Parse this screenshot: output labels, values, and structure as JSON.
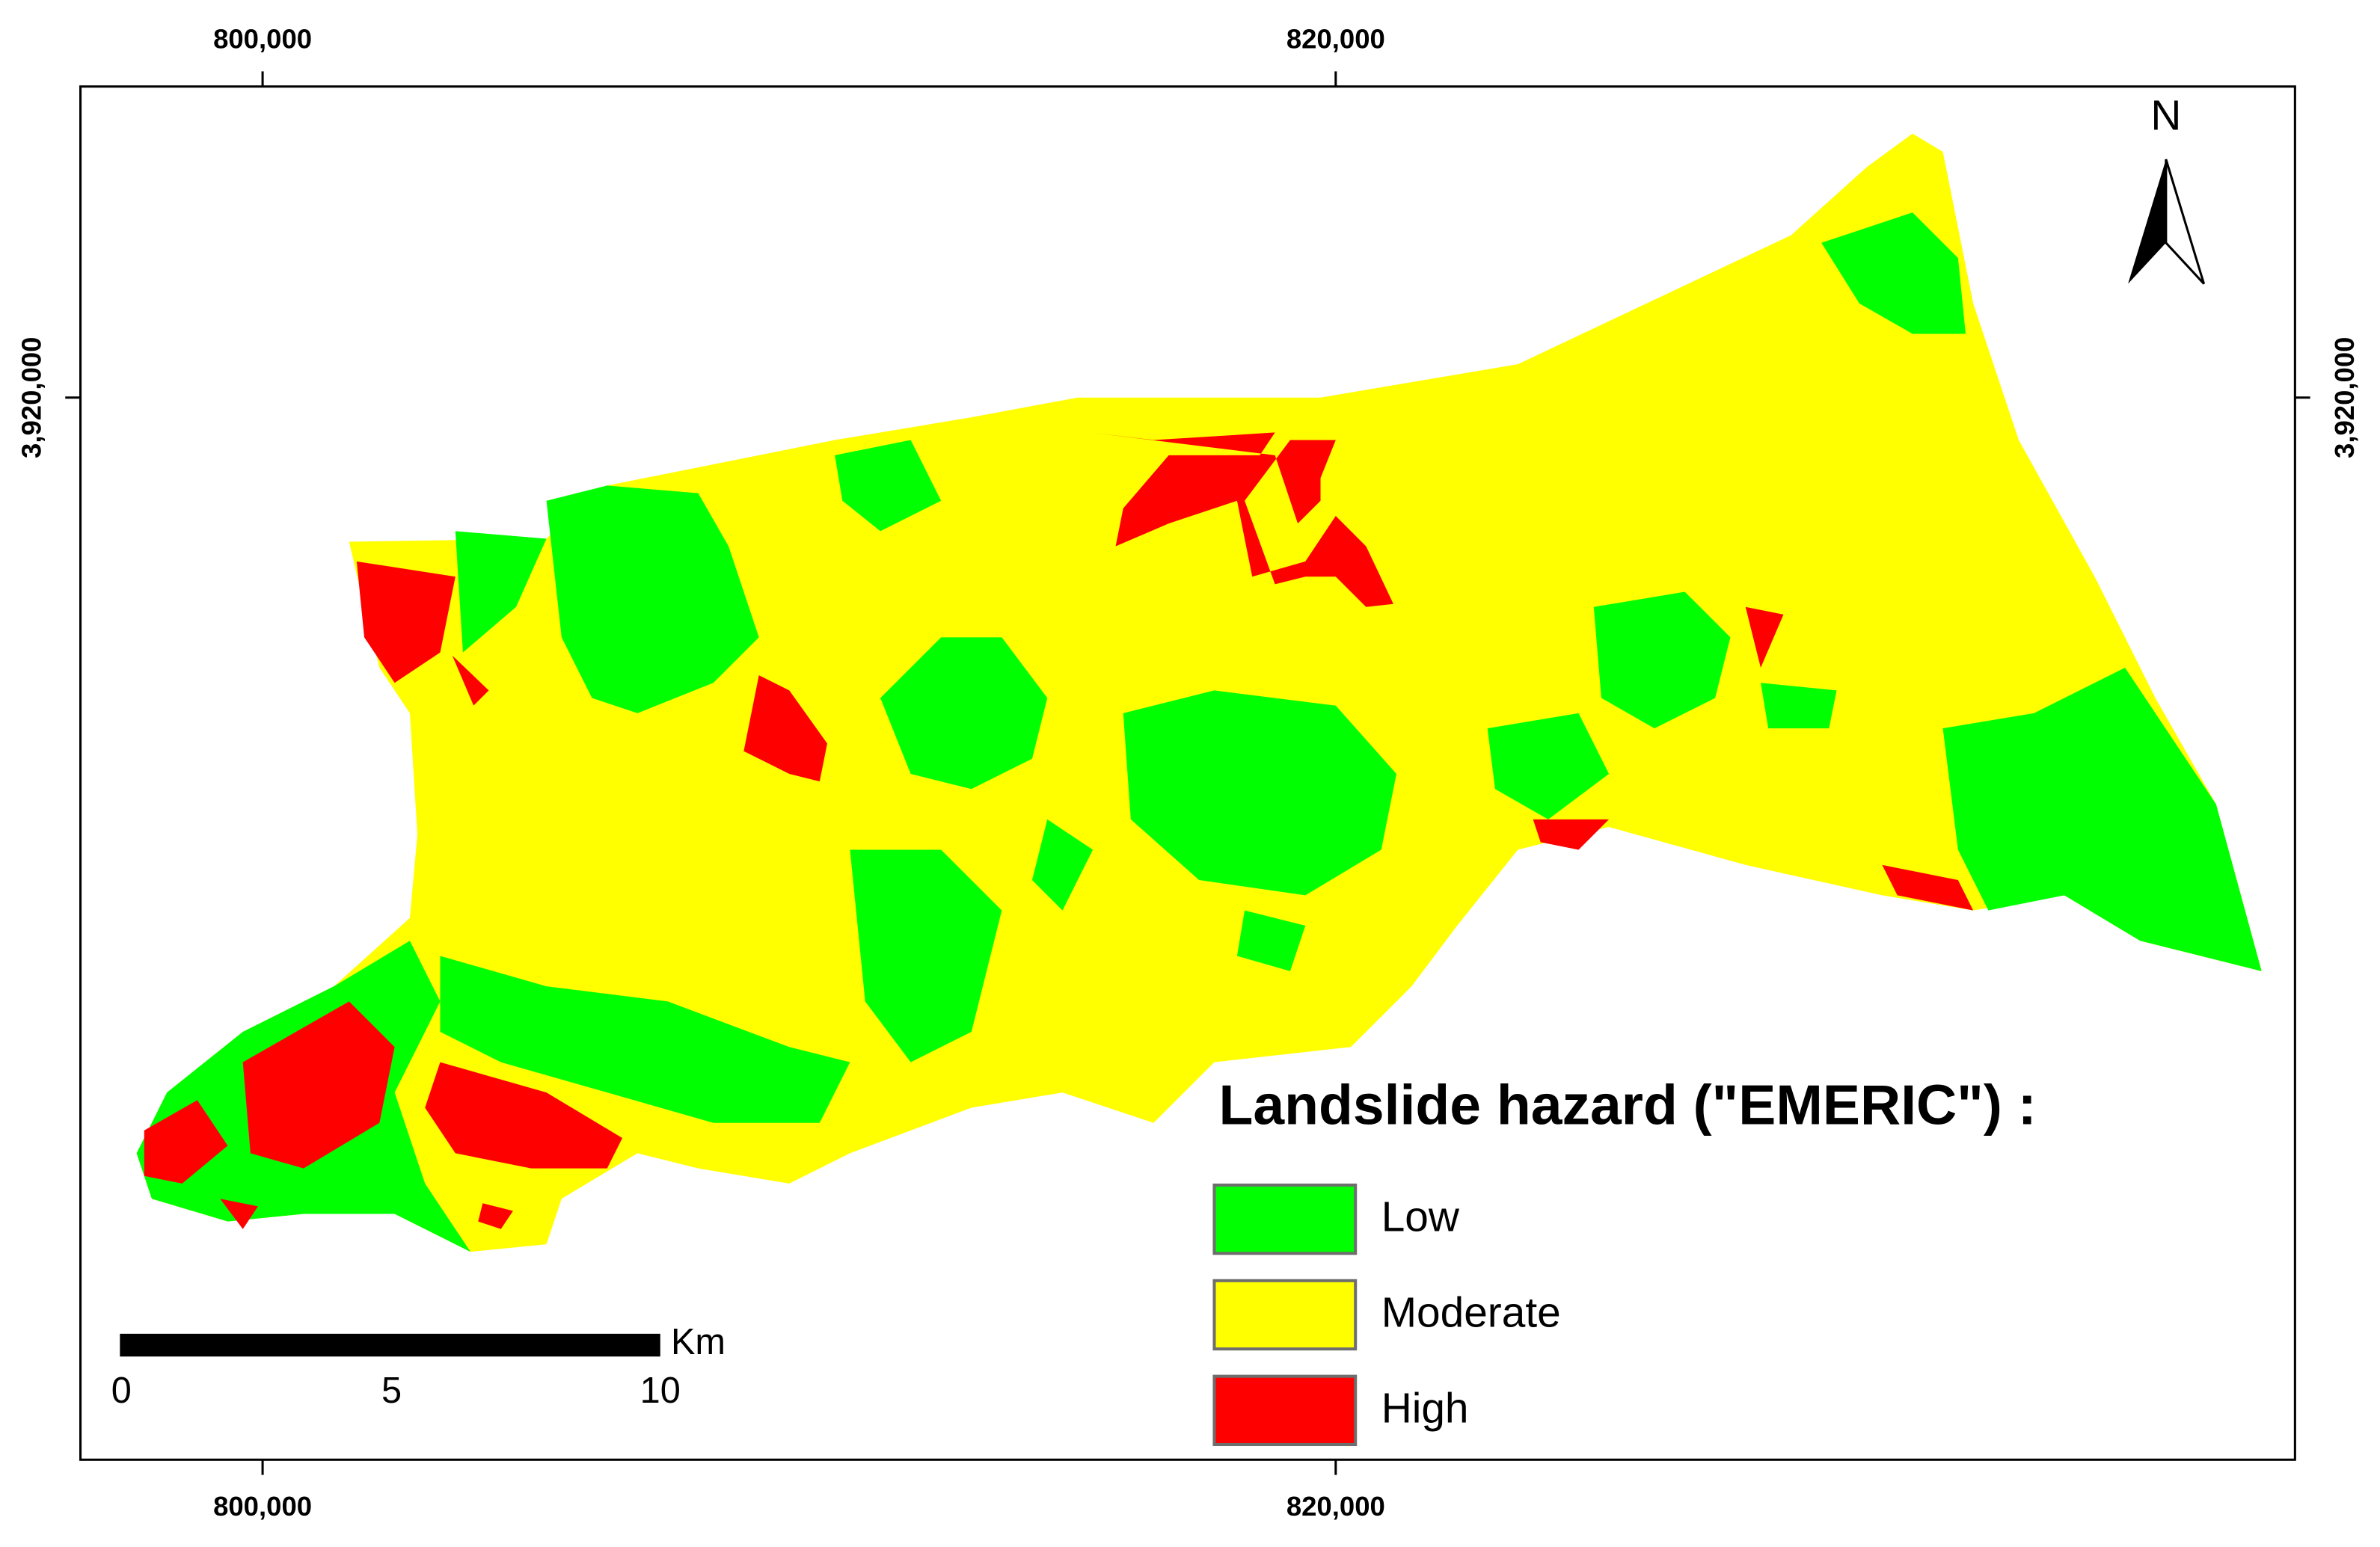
{
  "map": {
    "top_labels": [
      "800,000",
      "820,000"
    ],
    "bottom_labels": [
      "800,000",
      "820,000"
    ],
    "left_label": "3,920,000",
    "right_label": "3,920,000",
    "north_label": "N",
    "scale_bar": {
      "labels": [
        "0",
        "5",
        "10"
      ],
      "unit": "Km"
    },
    "legend": {
      "title": "Landslide hazard (\"EMERIC\") :",
      "items": [
        {
          "label": "Low",
          "color": "#00ff00"
        },
        {
          "label": "Moderate",
          "color": "#ffff00"
        },
        {
          "label": "High",
          "color": "#ff0000"
        }
      ]
    }
  }
}
